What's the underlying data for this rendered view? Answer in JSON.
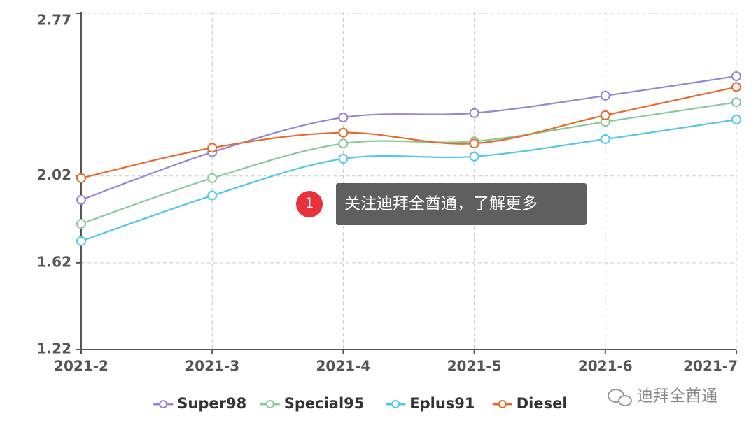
{
  "chart_data": {
    "type": "line",
    "categories": [
      "2021-2",
      "2021-3",
      "2021-4",
      "2021-5",
      "2021-6",
      "2021-7"
    ],
    "series": [
      {
        "name": "Super98",
        "color": "#8f86d8",
        "values": [
          1.91,
          2.13,
          2.29,
          2.31,
          2.39,
          2.48
        ]
      },
      {
        "name": "Special95",
        "color": "#86c99a",
        "values": [
          1.8,
          2.01,
          2.17,
          2.18,
          2.27,
          2.36
        ]
      },
      {
        "name": "Eplus91",
        "color": "#4fc6ee",
        "values": [
          1.72,
          1.93,
          2.1,
          2.11,
          2.19,
          2.28
        ]
      },
      {
        "name": "Diesel",
        "color": "#e8692a",
        "values": [
          2.01,
          2.15,
          2.22,
          2.17,
          2.3,
          2.43
        ]
      }
    ],
    "ylim": [
      1.22,
      2.77
    ],
    "yticks": [
      1.22,
      1.62,
      2.02,
      2.77
    ],
    "grid": true,
    "smooth": true,
    "legend": "bottom",
    "annotation": {
      "badge": "1",
      "text": "关注迪拜全酋通，了解更多"
    },
    "watermark": "迪拜全酋通"
  }
}
